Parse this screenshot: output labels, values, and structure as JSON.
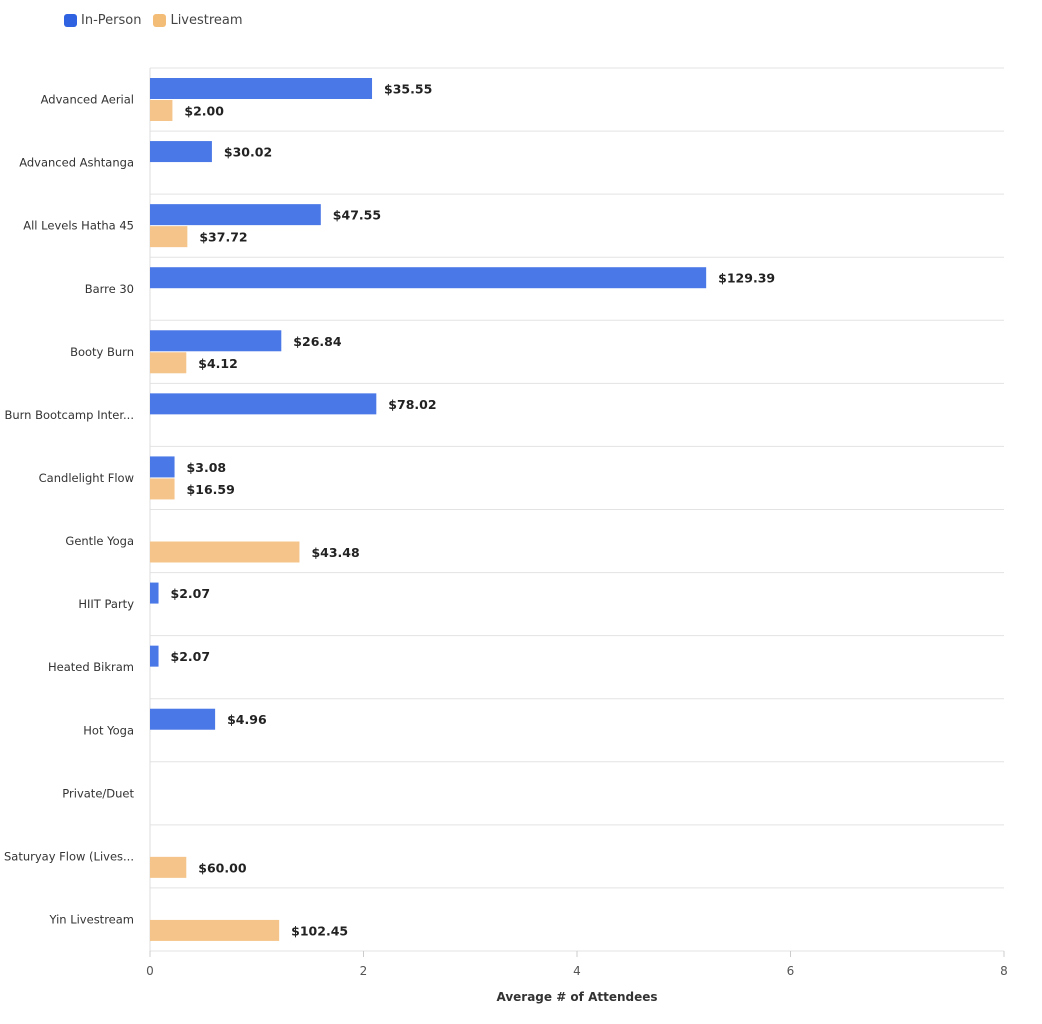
{
  "chart_data": {
    "type": "bar",
    "orientation": "horizontal",
    "title": "",
    "xlabel": "Average # of Attendees",
    "ylabel": "",
    "xlim": [
      0,
      8
    ],
    "xticks": [
      "0",
      "2",
      "4",
      "6",
      "8"
    ],
    "grid": true,
    "legend_position": "top-left",
    "categories": [
      "Advanced Aerial",
      "Advanced Ashtanga",
      "All Levels Hatha 45",
      "Barre 30",
      "Booty Burn",
      "Burn Bootcamp Inter...",
      "Candlelight Flow",
      "Gentle Yoga",
      "HIIT Party",
      "Heated Bikram",
      "Hot Yoga",
      "Private/Duet",
      "Saturyay Flow (Lives...",
      "Yin Livestream"
    ],
    "series": [
      {
        "name": "In-Person",
        "color": "#4a78e6",
        "values": [
          2.08,
          0.58,
          1.6,
          5.21,
          1.23,
          2.12,
          0.23,
          null,
          0.08,
          0.08,
          0.61,
          null,
          null,
          null
        ],
        "labels": [
          "$35.55",
          "$30.02",
          "$47.55",
          "$129.39",
          "$26.84",
          "$78.02",
          "$3.08",
          null,
          "$2.07",
          "$2.07",
          "$4.96",
          null,
          null,
          null
        ]
      },
      {
        "name": "Livestream",
        "color": "#f5c48a",
        "values": [
          0.21,
          null,
          0.35,
          null,
          0.34,
          null,
          0.23,
          1.4,
          null,
          null,
          null,
          null,
          0.34,
          1.21
        ],
        "labels": [
          "$2.00",
          null,
          "$37.72",
          null,
          "$4.12",
          null,
          "$16.59",
          "$43.48",
          null,
          null,
          null,
          null,
          "$60.00",
          "$102.45"
        ]
      }
    ]
  },
  "legend_swatch_colors": [
    "#2f62e0",
    "#f3bd78"
  ]
}
